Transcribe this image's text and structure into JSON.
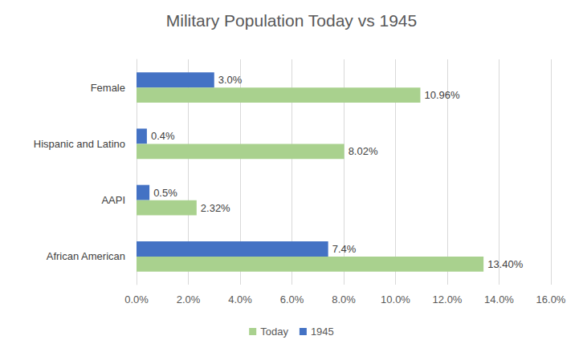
{
  "chart_data": {
    "type": "bar",
    "title": "Military Population Today vs 1945",
    "orientation": "horizontal",
    "categories": [
      "African American",
      "AAPI",
      "Hispanic and Latino",
      "Female"
    ],
    "series": [
      {
        "name": "Today",
        "color": "#a9d18e",
        "values": [
          13.4,
          2.32,
          8.02,
          10.96
        ],
        "value_labels": [
          "13.40%",
          "2.32%",
          "8.02%",
          "10.96%"
        ]
      },
      {
        "name": "1945",
        "color": "#4472c4",
        "values": [
          7.4,
          0.5,
          0.4,
          3.0
        ],
        "value_labels": [
          "7.4%",
          "0.5%",
          "0.4%",
          "3.0%"
        ]
      }
    ],
    "xlim": [
      0,
      16
    ],
    "xticks": [
      {
        "value": 0,
        "label": "0.0%"
      },
      {
        "value": 2,
        "label": "2.0%"
      },
      {
        "value": 4,
        "label": "4.0%"
      },
      {
        "value": 6,
        "label": "6.0%"
      },
      {
        "value": 8,
        "label": "8.0%"
      },
      {
        "value": 10,
        "label": "10.0%"
      },
      {
        "value": 12,
        "label": "12.0%"
      },
      {
        "value": 14,
        "label": "14.0%"
      },
      {
        "value": 16,
        "label": "16.0%"
      }
    ],
    "grid": true,
    "legend": "bottom",
    "data_labels": true
  }
}
